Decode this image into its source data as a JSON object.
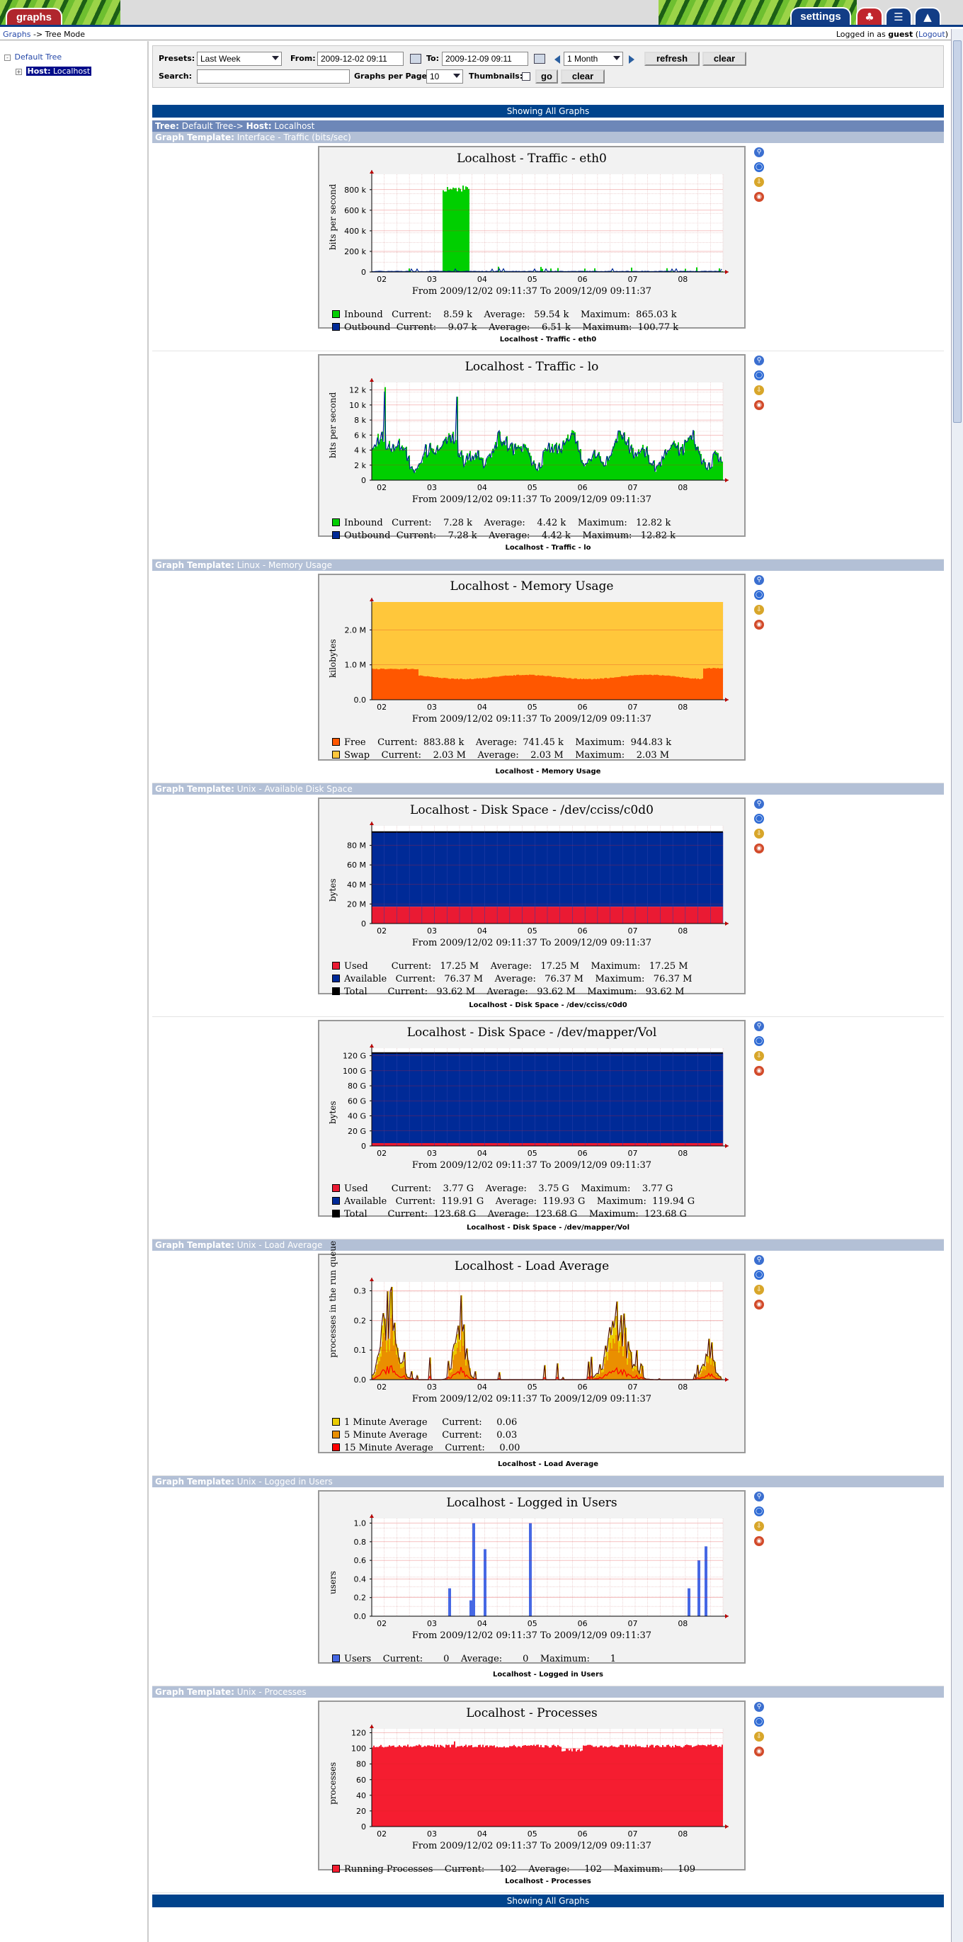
{
  "header": {
    "tabs": [
      "graphs",
      "settings"
    ],
    "breadcrumb": {
      "root": "Graphs",
      "sep": "->",
      "current": "Tree Mode"
    },
    "login": {
      "prefix": "Logged in as",
      "user": "guest",
      "action": "Logout"
    }
  },
  "tree": {
    "root": "Default Tree",
    "host_label": "Host:",
    "host": "Localhost"
  },
  "filters": {
    "presets_label": "Presets:",
    "presets_value": "Last Week",
    "from_label": "From:",
    "from_value": "2009-12-02 09:11",
    "to_label": "To:",
    "to_value": "2009-12-09 09:11",
    "shift_value": "1 Month",
    "refresh": "refresh",
    "clear": "clear",
    "search_label": "Search:",
    "search_value": "",
    "gpp_label": "Graphs per Page:",
    "gpp_value": "10",
    "thumb_label": "Thumbnails:",
    "go": "go",
    "clear2": "clear"
  },
  "showing": "Showing All Graphs",
  "tree_header": {
    "tree_label": "Tree:",
    "tree": "Default Tree->",
    "host_label": "Host:",
    "host": "Localhost"
  },
  "template_label": "Graph Template:",
  "colors": {
    "grid": "#e3b9b9",
    "inbound": "#00cf00",
    "outbound": "#002a97",
    "free": "#ff5700",
    "swap": "#ffc73b",
    "used": "#ea1a33",
    "available": "#002a97",
    "load1": "#eacc00",
    "load5": "#ea8f00",
    "load15": "#ff0000",
    "users": "#4668e4",
    "procs": "#f51d30"
  },
  "graphs": [
    {
      "template": "Interface - Traffic (bits/sec)",
      "title": "Localhost - Traffic - eth0",
      "caption": "Localhost - Traffic - eth0",
      "ylabel": "bits per second",
      "yticks": [
        "0",
        "200 k",
        "400 k",
        "600 k",
        "800 k"
      ],
      "ymax": 950000,
      "xticks": [
        "02",
        "03",
        "04",
        "05",
        "06",
        "07",
        "08"
      ],
      "fromto": "From 2009/12/02 09:11:37 To 2009/12/09 09:11:37",
      "legend": [
        {
          "color": "#00cf00",
          "text": "Inbound   Current:    8.59 k    Average:   59.54 k    Maximum:  865.03 k"
        },
        {
          "color": "#002a97",
          "text": "Outbound  Current:    9.07 k    Average:    6.51 k    Maximum:  100.77 k"
        }
      ],
      "chart_data": {
        "type": "area",
        "kind": "eth0",
        "series": [
          {
            "name": "Inbound",
            "color": "#00cf00"
          },
          {
            "name": "Outbound",
            "color": "#002a97"
          }
        ]
      }
    },
    {
      "template": "",
      "title": "Localhost - Traffic - lo",
      "caption": "Localhost - Traffic - lo",
      "ylabel": "bits per second",
      "yticks": [
        "0",
        "2 k",
        "4 k",
        "6 k",
        "8 k",
        "10 k",
        "12 k"
      ],
      "ymax": 13000,
      "xticks": [
        "02",
        "03",
        "04",
        "05",
        "06",
        "07",
        "08"
      ],
      "fromto": "From 2009/12/02 09:11:37 To 2009/12/09 09:11:37",
      "legend": [
        {
          "color": "#00cf00",
          "text": "Inbound   Current:    7.28 k    Average:    4.42 k    Maximum:   12.82 k"
        },
        {
          "color": "#002a97",
          "text": "Outbound  Current:    7.28 k    Average:    4.42 k    Maximum:   12.82 k"
        }
      ],
      "chart_data": {
        "type": "area",
        "kind": "lo",
        "series": [
          {
            "name": "Inbound",
            "color": "#00cf00"
          },
          {
            "name": "Outbound",
            "color": "#002a97"
          }
        ]
      }
    },
    {
      "template": "Linux - Memory Usage",
      "title": "Localhost - Memory Usage",
      "caption": "Localhost - Memory Usage",
      "ylabel": "kilobytes",
      "yticks": [
        "0.0",
        "1.0 M",
        "2.0 M"
      ],
      "ymax": 2800000,
      "xticks": [
        "02",
        "03",
        "04",
        "05",
        "06",
        "07",
        "08"
      ],
      "fromto": "From 2009/12/02 09:11:37 To 2009/12/09 09:11:37",
      "legend": [
        {
          "color": "#ff5700",
          "text": "Free    Current:  883.88 k    Average:  741.45 k    Maximum:  944.83 k"
        },
        {
          "color": "#ffc73b",
          "text": "Swap    Current:    2.03 M    Average:    2.03 M    Maximum:    2.03 M"
        }
      ],
      "chart_data": {
        "type": "area",
        "kind": "memory",
        "series": [
          {
            "name": "Free",
            "color": "#ff5700"
          },
          {
            "name": "Swap",
            "color": "#ffc73b"
          }
        ]
      }
    },
    {
      "template": "Unix - Available Disk Space",
      "title": "Localhost - Disk Space - /dev/cciss/c0d0",
      "caption": "Localhost - Disk Space - /dev/cciss/c0d0",
      "ylabel": "bytes",
      "yticks": [
        "0",
        "20 M",
        "40 M",
        "60 M",
        "80 M"
      ],
      "ymax": 100000000,
      "xticks": [
        "02",
        "03",
        "04",
        "05",
        "06",
        "07",
        "08"
      ],
      "fromto": "From 2009/12/02 09:11:37 To 2009/12/09 09:11:37",
      "legend": [
        {
          "color": "#ea1a33",
          "text": "Used        Current:   17.25 M    Average:   17.25 M    Maximum:   17.25 M"
        },
        {
          "color": "#002a97",
          "text": "Available   Current:   76.37 M    Average:   76.37 M    Maximum:   76.37 M"
        },
        {
          "color": "#000000",
          "text": "Total       Current:   93.62 M    Average:   93.62 M    Maximum:   93.62 M"
        }
      ],
      "chart_data": {
        "type": "area",
        "kind": "disk",
        "used": 17.25,
        "total": 93.62,
        "series": [
          {
            "name": "Used",
            "color": "#ea1a33"
          },
          {
            "name": "Available",
            "color": "#002a97"
          }
        ]
      }
    },
    {
      "template": "",
      "title": "Localhost - Disk Space - /dev/mapper/Vol",
      "caption": "Localhost - Disk Space - /dev/mapper/Vol",
      "ylabel": "bytes",
      "yticks": [
        "0",
        "20 G",
        "40 G",
        "60 G",
        "80 G",
        "100 G",
        "120 G"
      ],
      "ymax": 130000000000,
      "xticks": [
        "02",
        "03",
        "04",
        "05",
        "06",
        "07",
        "08"
      ],
      "fromto": "From 2009/12/02 09:11:37 To 2009/12/09 09:11:37",
      "legend": [
        {
          "color": "#ea1a33",
          "text": "Used        Current:    3.77 G    Average:    3.75 G    Maximum:    3.77 G"
        },
        {
          "color": "#002a97",
          "text": "Available   Current:  119.91 G    Average:  119.93 G    Maximum:  119.94 G"
        },
        {
          "color": "#000000",
          "text": "Total       Current:  123.68 G    Average:  123.68 G    Maximum:  123.68 G"
        }
      ],
      "chart_data": {
        "type": "area",
        "kind": "disk",
        "used": 3.77,
        "total": 123.68,
        "series": [
          {
            "name": "Used",
            "color": "#ea1a33"
          },
          {
            "name": "Available",
            "color": "#002a97"
          }
        ]
      }
    },
    {
      "template": "Unix - Load Average",
      "title": "Localhost - Load Average",
      "caption": "Localhost - Load Average",
      "ylabel": "processes in the run queue",
      "yticks": [
        "0.0",
        "0.1",
        "0.2",
        "0.3"
      ],
      "ymax": 0.33,
      "xticks": [
        "02",
        "03",
        "04",
        "05",
        "06",
        "07",
        "08"
      ],
      "fromto": "From 2009/12/02 09:11:37 To 2009/12/09 09:11:37",
      "legend": [
        {
          "color": "#eacc00",
          "text": "1 Minute Average     Current:     0.06"
        },
        {
          "color": "#ea8f00",
          "text": "5 Minute Average     Current:     0.03"
        },
        {
          "color": "#ff0000",
          "text": "15 Minute Average    Current:     0.00"
        }
      ],
      "chart_data": {
        "type": "area",
        "kind": "load",
        "series": [
          {
            "name": "1 Minute Average",
            "color": "#eacc00"
          },
          {
            "name": "5 Minute Average",
            "color": "#ea8f00"
          },
          {
            "name": "15 Minute Average",
            "color": "#ff0000"
          }
        ]
      }
    },
    {
      "template": "Unix - Logged in Users",
      "title": "Localhost - Logged in Users",
      "caption": "Localhost - Logged in Users",
      "ylabel": "users",
      "yticks": [
        "0.0",
        "0.2",
        "0.4",
        "0.6",
        "0.8",
        "1.0"
      ],
      "ymax": 1.05,
      "xticks": [
        "02",
        "03",
        "04",
        "05",
        "06",
        "07",
        "08"
      ],
      "fromto": "From 2009/12/02 09:11:37 To 2009/12/09 09:11:37",
      "legend": [
        {
          "color": "#4668e4",
          "text": "Users    Current:       0    Average:       0    Maximum:       1"
        }
      ],
      "chart_data": {
        "type": "area",
        "kind": "users",
        "series": [
          {
            "name": "Users",
            "color": "#4668e4"
          }
        ]
      }
    },
    {
      "template": "Unix - Processes",
      "title": "Localhost - Processes",
      "caption": "Localhost - Processes",
      "ylabel": "processes",
      "yticks": [
        "0",
        "20",
        "40",
        "60",
        "80",
        "100",
        "120"
      ],
      "ymax": 125,
      "xticks": [
        "02",
        "03",
        "04",
        "05",
        "06",
        "07",
        "08"
      ],
      "fromto": "From 2009/12/02 09:11:37 To 2009/12/09 09:11:37",
      "legend": [
        {
          "color": "#f51d30",
          "text": "Running Processes    Current:     102    Average:     102    Maximum:     109"
        }
      ],
      "chart_data": {
        "type": "area",
        "kind": "procs",
        "series": [
          {
            "name": "Running Processes",
            "color": "#f51d30"
          }
        ]
      }
    }
  ]
}
